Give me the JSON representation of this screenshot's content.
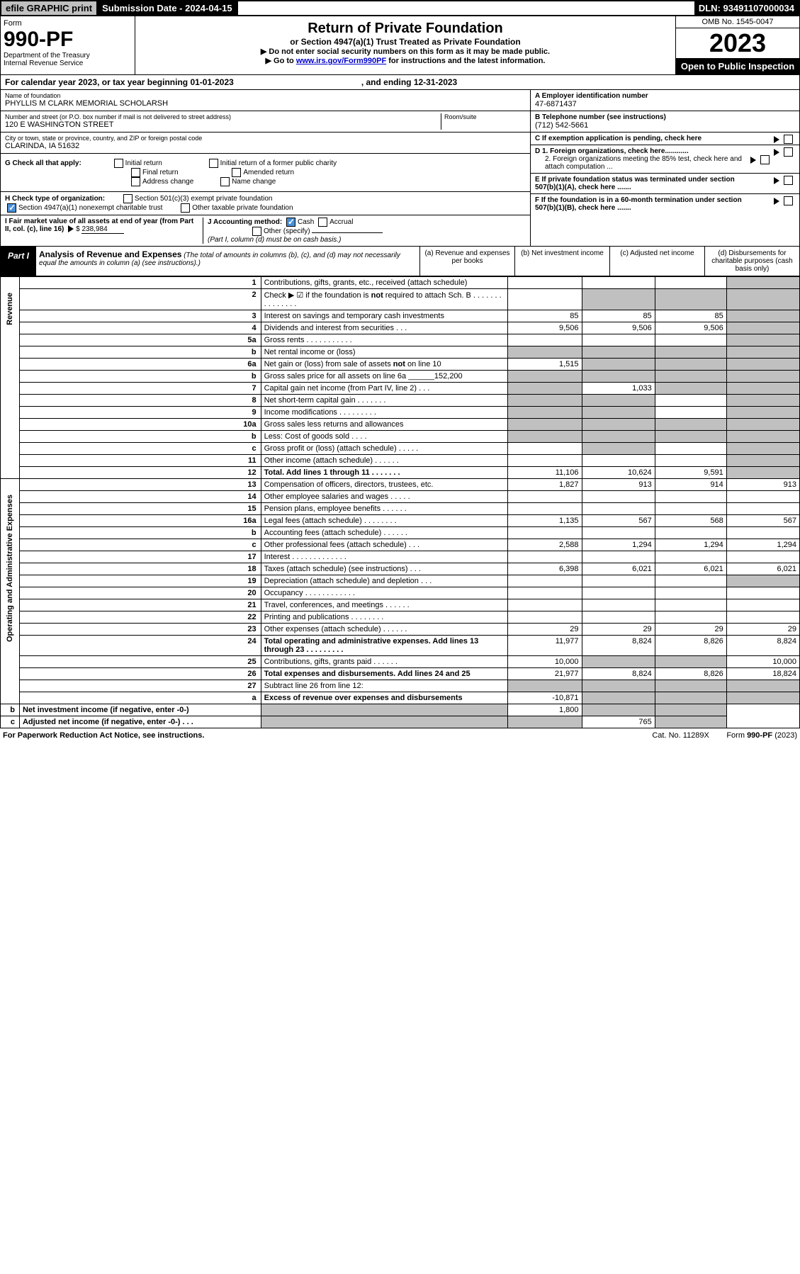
{
  "topbar": {
    "efile": "efile GRAPHIC print",
    "subdate": "Submission Date - 2024-04-15",
    "dln": "DLN: 93491107000034"
  },
  "header": {
    "form_word": "Form",
    "form_num": "990-PF",
    "dept1": "Department of the Treasury",
    "dept2": "Internal Revenue Service",
    "title": "Return of Private Foundation",
    "subtitle": "or Section 4947(a)(1) Trust Treated as Private Foundation",
    "note1": "▶ Do not enter social security numbers on this form as it may be made public.",
    "note2_pre": "▶ Go to ",
    "note2_link": "www.irs.gov/Form990PF",
    "note2_post": " for instructions and the latest information.",
    "omb": "OMB No. 1545-0047",
    "year": "2023",
    "open": "Open to Public Inspection"
  },
  "cal": {
    "text": "For calendar year 2023, or tax year beginning 01-01-2023",
    "end": ", and ending 12-31-2023"
  },
  "info": {
    "name_lbl": "Name of foundation",
    "name_val": "PHYLLIS M CLARK MEMORIAL SCHOLARSH",
    "addr_lbl": "Number and street (or P.O. box number if mail is not delivered to street address)",
    "addr_val": "120 E WASHINGTON STREET",
    "room_lbl": "Room/suite",
    "city_lbl": "City or town, state or province, country, and ZIP or foreign postal code",
    "city_val": "CLARINDA, IA  51632",
    "a_lbl": "A Employer identification number",
    "a_val": "47-6871437",
    "b_lbl": "B Telephone number (see instructions)",
    "b_val": "(712) 542-5661",
    "c_lbl": "C If exemption application is pending, check here",
    "d1": "D 1. Foreign organizations, check here............",
    "d2": "2. Foreign organizations meeting the 85% test, check here and attach computation ...",
    "e": "E  If private foundation status was terminated under section 507(b)(1)(A), check here .......",
    "f": "F  If the foundation is in a 60-month termination under section 507(b)(1)(B), check here .......",
    "g_lbl": "G Check all that apply:",
    "g_opts": [
      "Initial return",
      "Final return",
      "Address change",
      "Initial return of a former public charity",
      "Amended return",
      "Name change"
    ],
    "h_lbl": "H Check type of organization:",
    "h_opts": [
      "Section 501(c)(3) exempt private foundation",
      "Section 4947(a)(1) nonexempt charitable trust",
      "Other taxable private foundation"
    ],
    "i_lbl": "I Fair market value of all assets at end of year (from Part II, col. (c), line 16)",
    "i_val": "238,984",
    "j_lbl": "J Accounting method:",
    "j_opts": [
      "Cash",
      "Accrual",
      "Other (specify)"
    ],
    "j_note": "(Part I, column (d) must be on cash basis.)"
  },
  "part1": {
    "lbl": "Part I",
    "title": "Analysis of Revenue and Expenses",
    "desc": " (The total of amounts in columns (b), (c), and (d) may not necessarily equal the amounts in column (a) (see instructions).)",
    "cols": [
      "(a)   Revenue and expenses per books",
      "(b)   Net investment income",
      "(c)   Adjusted net income",
      "(d)   Disbursements for charitable purposes (cash basis only)"
    ]
  },
  "side": {
    "rev": "Revenue",
    "exp": "Operating and Administrative Expenses"
  },
  "rows": [
    {
      "n": "1",
      "d": "Contributions, gifts, grants, etc., received (attach schedule)",
      "a": "",
      "b": "",
      "c": "",
      "dd": "",
      "ds": true
    },
    {
      "n": "2",
      "d": "Check ▶ ☑ if the foundation is not required to attach Sch. B    .   .   .   .   .   .   .   .   .   .   .   .   .   .   .",
      "a": "",
      "b": "",
      "c": "",
      "dd": "",
      "bs": true,
      "cs": true,
      "ds": true
    },
    {
      "n": "3",
      "d": "Interest on savings and temporary cash investments",
      "a": "85",
      "b": "85",
      "c": "85",
      "dd": "",
      "ds": true
    },
    {
      "n": "4",
      "d": "Dividends and interest from securities   .   .   .",
      "a": "9,506",
      "b": "9,506",
      "c": "9,506",
      "dd": "",
      "ds": true
    },
    {
      "n": "5a",
      "d": "Gross rents   .   .   .   .   .   .   .   .   .   .   .",
      "a": "",
      "b": "",
      "c": "",
      "dd": "",
      "ds": true
    },
    {
      "n": "b",
      "d": "Net rental income or (loss)",
      "a": "",
      "b": "",
      "c": "",
      "dd": "",
      "as": true,
      "bs": true,
      "cs": true,
      "ds": true
    },
    {
      "n": "6a",
      "d": "Net gain or (loss) from sale of assets not on line 10",
      "a": "1,515",
      "b": "",
      "c": "",
      "dd": "",
      "bs": true,
      "cs": true,
      "ds": true
    },
    {
      "n": "b",
      "d": "Gross sales price for all assets on line 6a ______152,200",
      "a": "",
      "b": "",
      "c": "",
      "dd": "",
      "as": true,
      "bs": true,
      "cs": true,
      "ds": true
    },
    {
      "n": "7",
      "d": "Capital gain net income (from Part IV, line 2)   .   .   .",
      "a": "",
      "b": "1,033",
      "c": "",
      "dd": "",
      "as": true,
      "cs": true,
      "ds": true
    },
    {
      "n": "8",
      "d": "Net short-term capital gain   .   .   .   .   .   .   .",
      "a": "",
      "b": "",
      "c": "",
      "dd": "",
      "as": true,
      "bs": true,
      "ds": true
    },
    {
      "n": "9",
      "d": "Income modifications   .   .   .   .   .   .   .   .   .",
      "a": "",
      "b": "",
      "c": "",
      "dd": "",
      "as": true,
      "bs": true,
      "ds": true
    },
    {
      "n": "10a",
      "d": "Gross sales less returns and allowances",
      "a": "",
      "b": "",
      "c": "",
      "dd": "",
      "as": true,
      "bs": true,
      "cs": true,
      "ds": true
    },
    {
      "n": "b",
      "d": "Less: Cost of goods sold   .   .   .   .",
      "a": "",
      "b": "",
      "c": "",
      "dd": "",
      "as": true,
      "bs": true,
      "cs": true,
      "ds": true
    },
    {
      "n": "c",
      "d": "Gross profit or (loss) (attach schedule)   .   .   .   .   .",
      "a": "",
      "b": "",
      "c": "",
      "dd": "",
      "bs": true,
      "ds": true
    },
    {
      "n": "11",
      "d": "Other income (attach schedule)   .   .   .   .   .   .",
      "a": "",
      "b": "",
      "c": "",
      "dd": "",
      "ds": true
    },
    {
      "n": "12",
      "d": "Total. Add lines 1 through 11   .   .   .   .   .   .   .",
      "a": "11,106",
      "b": "10,624",
      "c": "9,591",
      "dd": "",
      "bold": true,
      "ds": true
    },
    {
      "n": "13",
      "d": "Compensation of officers, directors, trustees, etc.",
      "a": "1,827",
      "b": "913",
      "c": "914",
      "dd": "913"
    },
    {
      "n": "14",
      "d": "Other employee salaries and wages   .   .   .   .   .",
      "a": "",
      "b": "",
      "c": "",
      "dd": ""
    },
    {
      "n": "15",
      "d": "Pension plans, employee benefits   .   .   .   .   .   .",
      "a": "",
      "b": "",
      "c": "",
      "dd": ""
    },
    {
      "n": "16a",
      "d": "Legal fees (attach schedule)   .   .   .   .   .   .   .   .",
      "a": "1,135",
      "b": "567",
      "c": "568",
      "dd": "567"
    },
    {
      "n": "b",
      "d": "Accounting fees (attach schedule)   .   .   .   .   .   .",
      "a": "",
      "b": "",
      "c": "",
      "dd": ""
    },
    {
      "n": "c",
      "d": "Other professional fees (attach schedule)   .   .   .",
      "a": "2,588",
      "b": "1,294",
      "c": "1,294",
      "dd": "1,294"
    },
    {
      "n": "17",
      "d": "Interest   .   .   .   .   .   .   .   .   .   .   .   .   .",
      "a": "",
      "b": "",
      "c": "",
      "dd": ""
    },
    {
      "n": "18",
      "d": "Taxes (attach schedule) (see instructions)   .   .   .",
      "a": "6,398",
      "b": "6,021",
      "c": "6,021",
      "dd": "6,021"
    },
    {
      "n": "19",
      "d": "Depreciation (attach schedule) and depletion   .   .   .",
      "a": "",
      "b": "",
      "c": "",
      "dd": "",
      "ds": true
    },
    {
      "n": "20",
      "d": "Occupancy   .   .   .   .   .   .   .   .   .   .   .   .",
      "a": "",
      "b": "",
      "c": "",
      "dd": ""
    },
    {
      "n": "21",
      "d": "Travel, conferences, and meetings   .   .   .   .   .   .",
      "a": "",
      "b": "",
      "c": "",
      "dd": ""
    },
    {
      "n": "22",
      "d": "Printing and publications   .   .   .   .   .   .   .   .",
      "a": "",
      "b": "",
      "c": "",
      "dd": ""
    },
    {
      "n": "23",
      "d": "Other expenses (attach schedule)   .   .   .   .   .   .",
      "a": "29",
      "b": "29",
      "c": "29",
      "dd": "29"
    },
    {
      "n": "24",
      "d": "Total operating and administrative expenses. Add lines 13 through 23   .   .   .   .   .   .   .   .   .",
      "a": "11,977",
      "b": "8,824",
      "c": "8,826",
      "dd": "8,824",
      "bold": true
    },
    {
      "n": "25",
      "d": "Contributions, gifts, grants paid   .   .   .   .   .   .",
      "a": "10,000",
      "b": "",
      "c": "",
      "dd": "10,000",
      "bs": true,
      "cs": true
    },
    {
      "n": "26",
      "d": "Total expenses and disbursements. Add lines 24 and 25",
      "a": "21,977",
      "b": "8,824",
      "c": "8,826",
      "dd": "18,824",
      "bold": true
    },
    {
      "n": "27",
      "d": "Subtract line 26 from line 12:",
      "a": "",
      "b": "",
      "c": "",
      "dd": "",
      "as": true,
      "bs": true,
      "cs": true,
      "ds": true
    },
    {
      "n": "a",
      "d": "Excess of revenue over expenses and disbursements",
      "a": "-10,871",
      "b": "",
      "c": "",
      "dd": "",
      "bold": true,
      "bs": true,
      "cs": true,
      "ds": true
    },
    {
      "n": "b",
      "d": "Net investment income (if negative, enter -0-)",
      "a": "",
      "b": "1,800",
      "c": "",
      "dd": "",
      "bold": true,
      "as": true,
      "cs": true,
      "ds": true
    },
    {
      "n": "c",
      "d": "Adjusted net income (if negative, enter -0-)   .   .   .",
      "a": "",
      "b": "",
      "c": "765",
      "dd": "",
      "bold": true,
      "as": true,
      "bs": true,
      "ds": true
    }
  ],
  "foot": {
    "pra": "For Paperwork Reduction Act Notice, see instructions.",
    "cat": "Cat. No. 11289X",
    "form": "Form 990-PF (2023)"
  }
}
